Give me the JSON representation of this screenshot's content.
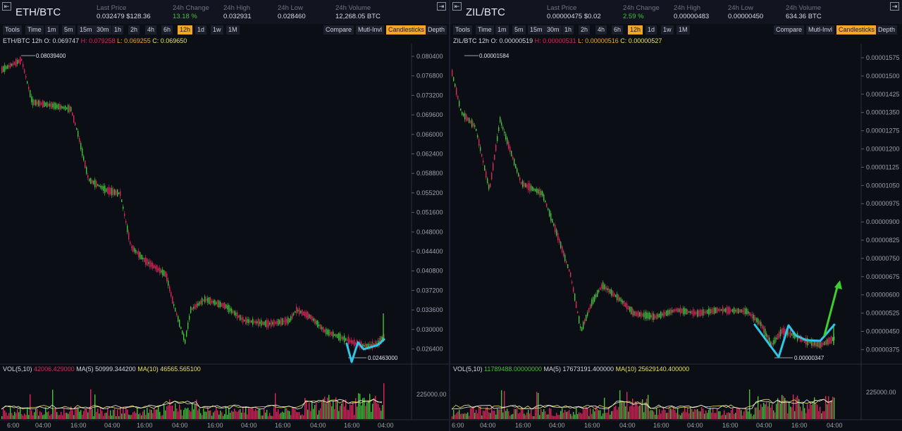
{
  "panels": [
    {
      "pair": "ETH/BTC",
      "stats": [
        {
          "label": "Last Price",
          "value": "0.032479 $128.36",
          "color": ""
        },
        {
          "label": "24h Change",
          "value": "13.18 %",
          "color": "green"
        },
        {
          "label": "24h High",
          "value": "0.032931",
          "color": ""
        },
        {
          "label": "24h Low",
          "value": "0.028460",
          "color": ""
        },
        {
          "label": "24h Volume",
          "value": "12,268.05 BTC",
          "color": ""
        }
      ],
      "intervals": [
        "Tools",
        "Time",
        "1m",
        "5m",
        "15m",
        "30m",
        "1h",
        "2h",
        "4h",
        "6h",
        "12h",
        "1d",
        "1w",
        "1M"
      ],
      "active_interval": "12h",
      "right_tools": [
        "Compare",
        "Mutl-Invl",
        "Candlesticks",
        "Depth"
      ],
      "active_tool": "Candlesticks",
      "ohlc": {
        "prefix": "ETH/BTC 12h",
        "o": "O: 0.069747",
        "h": "H: 0.079258",
        "l": "L: 0.069255",
        "c": "C: 0.069650"
      },
      "price_ticks": [
        "0.080400",
        "0.076800",
        "0.073200",
        "0.069600",
        "0.066000",
        "0.062400",
        "0.058800",
        "0.055200",
        "0.051600",
        "0.048000",
        "0.044400",
        "0.040800",
        "0.037200",
        "0.033600",
        "0.030000",
        "0.026400"
      ],
      "high_marker": "0.08039400",
      "low_marker": "0.02463000",
      "vol": {
        "prefix": "VOL(5,10)",
        "v": "42006.429000",
        "ma5": "MA(5)  50999.344200",
        "ma10": "MA(10)  46565.565100"
      },
      "vol_tick": "225000.00",
      "time_ticks": [
        "6:00",
        "04:00",
        "16:00",
        "04:00",
        "16:00",
        "04:00",
        "16:00",
        "04:00",
        "16:00",
        "04:00",
        "16:00",
        "04:00"
      ]
    },
    {
      "pair": "ZIL/BTC",
      "stats": [
        {
          "label": "Last Price",
          "value": "0.00000475 $0.02",
          "color": ""
        },
        {
          "label": "24h Change",
          "value": "2.59 %",
          "color": "green"
        },
        {
          "label": "24h High",
          "value": "0.00000483",
          "color": ""
        },
        {
          "label": "24h Low",
          "value": "0.00000450",
          "color": ""
        },
        {
          "label": "24h Volume",
          "value": "634.36 BTC",
          "color": ""
        }
      ],
      "intervals": [
        "Tools",
        "Time",
        "1m",
        "5m",
        "15m",
        "30m",
        "1h",
        "2h",
        "4h",
        "6h",
        "12h",
        "1d",
        "1w",
        "1M"
      ],
      "active_interval": "12h",
      "right_tools": [
        "Compare",
        "Mutl-Invl",
        "Candlesticks",
        "Depth"
      ],
      "active_tool": "Candlesticks",
      "ohlc": {
        "prefix": "ZIL/BTC 12h",
        "o": "O: 0.00000519",
        "h": "H: 0.00000531",
        "l": "L: 0.00000516",
        "c": "C: 0.00000527"
      },
      "price_ticks": [
        "0.00001575",
        "0.00001500",
        "0.00001425",
        "0.00001350",
        "0.00001275",
        "0.00001200",
        "0.00001125",
        "0.00001050",
        "0.00000975",
        "0.00000900",
        "0.00000825",
        "0.00000750",
        "0.00000675",
        "0.00000600",
        "0.00000525",
        "0.00000450",
        "0.00000375"
      ],
      "high_marker": "0.00001584",
      "low_marker": "0.00000347",
      "vol": {
        "prefix": "VOL(5,10)",
        "v": "11789488.00000000",
        "ma5": "MA(5)  17673191.400000",
        "ma10": "MA(10)  25629140.400000"
      },
      "vol_tick": "225000.00",
      "time_ticks": [
        "6:00",
        "04:00",
        "16:00",
        "04:00",
        "16:00",
        "04:00",
        "16:00",
        "04:00",
        "16:00",
        "04:00",
        "16:00",
        "04:00"
      ]
    }
  ],
  "colors": {
    "up": "#43c23a",
    "down": "#e0245e",
    "accent": "#f5a623",
    "annotation_line": "#2fc6e8",
    "annotation_arrow": "#3ccf2d"
  }
}
